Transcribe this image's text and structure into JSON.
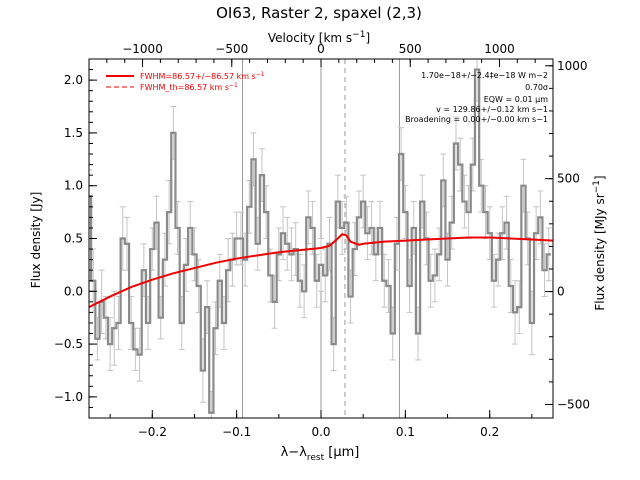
{
  "chart_data": {
    "type": "line",
    "title": "OI63, Raster 2, spaxel (2,3)",
    "xlabel": "λ−λ",
    "xlabel_sub": "rest",
    "xlabel_unit": " [μm]",
    "ylabel": "Flux density [Jy]",
    "top_axis_label": "Velocity [km s",
    "top_axis_label_sup": "−1",
    "top_axis_label_end": "]",
    "right_axis_label": "Flux density [MJy sr",
    "right_axis_label_sup": "−1",
    "right_axis_label_end": "]",
    "xlim": [
      -0.275,
      0.275
    ],
    "ylim": [
      -1.2,
      2.2
    ],
    "x_ticks": [
      -0.2,
      -0.1,
      0.0,
      0.1,
      0.2
    ],
    "x_tick_labels": [
      "−0.2",
      "−0.1",
      "0.0",
      "0.1",
      "0.2"
    ],
    "y_ticks": [
      -1.0,
      -0.5,
      0.0,
      0.5,
      1.0,
      1.5,
      2.0
    ],
    "y_tick_labels": [
      "−1.0",
      "−0.5",
      "0.0",
      "0.5",
      "1.0",
      "1.5",
      "2.0"
    ],
    "velocity_ticks": [
      -1000,
      -500,
      0,
      500,
      1000
    ],
    "velocity_tick_labels": [
      "−1000",
      "−500",
      "0",
      "500",
      "1000"
    ],
    "velocity_lim": [
      -1300,
      1300
    ],
    "right_ticks": [
      -500,
      0,
      500,
      1000
    ],
    "right_tick_labels": [
      "−500",
      "0",
      "500",
      "1000"
    ],
    "right_lim": [
      -560,
      1030
    ],
    "vertical_lines_solid": [
      -0.093,
      0.0,
      0.093
    ],
    "vertical_line_dashed": 0.0284,
    "legend": [
      {
        "label": "FWHM=86.57+/−86.57 km s",
        "sup": "−1",
        "style": "solid"
      },
      {
        "label": "FWHM_th=86.57 km s",
        "sup": "−1",
        "style": "dashed"
      }
    ],
    "annotations": [
      "1.70e−18+/−2.4‡e−18 W m−2",
      "0.70σ",
      "EQW = 0.01 μm",
      "v = 129.86+/−0.12 km s−1",
      "Broadening = 0.00+/−0.00 km s−1"
    ],
    "colors": {
      "data": "#8a8a8a",
      "error": "#c4c4c4",
      "model": "#ee0000",
      "vline": "#999999"
    },
    "series": [
      {
        "name": "Flux density",
        "style": "step",
        "x": [
          -0.275,
          -0.27,
          -0.265,
          -0.26,
          -0.255,
          -0.25,
          -0.245,
          -0.24,
          -0.235,
          -0.23,
          -0.225,
          -0.22,
          -0.215,
          -0.21,
          -0.205,
          -0.2,
          -0.195,
          -0.19,
          -0.185,
          -0.18,
          -0.175,
          -0.17,
          -0.165,
          -0.16,
          -0.155,
          -0.15,
          -0.145,
          -0.14,
          -0.135,
          -0.13,
          -0.125,
          -0.12,
          -0.115,
          -0.11,
          -0.105,
          -0.1,
          -0.095,
          -0.09,
          -0.085,
          -0.08,
          -0.075,
          -0.07,
          -0.065,
          -0.06,
          -0.055,
          -0.05,
          -0.045,
          -0.04,
          -0.035,
          -0.03,
          -0.025,
          -0.02,
          -0.015,
          -0.01,
          -0.005,
          0.0,
          0.005,
          0.01,
          0.015,
          0.02,
          0.025,
          0.03,
          0.035,
          0.04,
          0.045,
          0.05,
          0.055,
          0.06,
          0.065,
          0.07,
          0.075,
          0.08,
          0.085,
          0.09,
          0.095,
          0.1,
          0.105,
          0.11,
          0.115,
          0.12,
          0.125,
          0.13,
          0.135,
          0.14,
          0.145,
          0.15,
          0.155,
          0.16,
          0.165,
          0.17,
          0.175,
          0.18,
          0.185,
          0.19,
          0.195,
          0.2,
          0.205,
          0.21,
          0.215,
          0.22,
          0.225,
          0.23,
          0.235,
          0.24,
          0.245,
          0.25,
          0.255,
          0.26,
          0.265,
          0.27
        ],
        "y": [
          0.9,
          0.1,
          -0.45,
          -0.1,
          -0.25,
          -0.5,
          -0.35,
          -0.3,
          0.5,
          0.45,
          -0.3,
          -0.55,
          -0.6,
          0.2,
          -0.3,
          0.4,
          0.65,
          -0.25,
          0.3,
          0.75,
          1.5,
          0.6,
          -0.3,
          0.25,
          0.6,
          0.35,
          0.05,
          -0.75,
          -0.15,
          -1.15,
          -0.35,
          0.1,
          -0.3,
          0.2,
          0.3,
          0.5,
          0.5,
          0.3,
          0.8,
          1.25,
          0.45,
          1.1,
          0.75,
          0.15,
          -0.1,
          0.35,
          0.55,
          0.45,
          0.35,
          0.4,
          0.1,
          0.0,
          0.7,
          0.6,
          0.1,
          0.25,
          0.15,
          0.45,
          -0.5,
          0.85,
          0.6,
          0.65,
          -0.05,
          0.4,
          0.7,
          0.85,
          0.55,
          0.6,
          0.35,
          0.6,
          0.1,
          0.05,
          -0.4,
          0.45,
          1.3,
          0.75,
          0.05,
          0.6,
          -0.4,
          0.85,
          0.5,
          0.1,
          0.15,
          0.35,
          1.05,
          0.3,
          0.65,
          1.4,
          1.2,
          0.85,
          0.75,
          1.2,
          2.1,
          1.0,
          0.75,
          0.55,
          0.1,
          0.3,
          0.55,
          0.65,
          0.05,
          -0.2,
          -0.15,
          1.0,
          0.5,
          -0.3,
          0.55,
          0.7,
          0.2,
          0.35
        ],
        "errors": [
          0.25,
          0.3,
          0.2,
          0.3,
          0.2,
          0.25,
          0.35,
          0.25,
          0.3,
          0.25,
          0.25,
          0.2,
          0.25,
          0.25,
          0.25,
          0.2,
          0.25,
          0.2,
          0.25,
          0.3,
          0.25,
          0.25,
          0.25,
          0.25,
          0.25,
          0.25,
          0.25,
          0.3,
          0.25,
          0.2,
          0.25,
          0.25,
          0.25,
          0.3,
          0.25,
          0.25,
          0.25,
          0.25,
          0.25,
          0.25,
          0.25,
          0.25,
          0.25,
          0.25,
          0.25,
          0.25,
          0.25,
          0.25,
          0.25,
          0.25,
          0.25,
          0.25,
          0.25,
          0.25,
          0.25,
          0.25,
          0.25,
          0.25,
          0.25,
          0.25,
          0.25,
          0.25,
          0.25,
          0.25,
          0.25,
          0.25,
          0.25,
          0.25,
          0.25,
          0.25,
          0.25,
          0.25,
          0.25,
          0.25,
          0.25,
          0.25,
          0.25,
          0.25,
          0.25,
          0.25,
          0.25,
          0.25,
          0.25,
          0.25,
          0.25,
          0.25,
          0.25,
          0.25,
          0.25,
          0.25,
          0.25,
          0.25,
          0.3,
          0.25,
          0.25,
          0.25,
          0.25,
          0.25,
          0.25,
          0.25,
          0.25,
          0.3,
          0.25,
          0.25,
          0.25,
          0.3,
          0.25,
          0.25,
          0.25,
          0.25
        ]
      },
      {
        "name": "Fit",
        "style": "line",
        "x": [
          -0.275,
          -0.25,
          -0.225,
          -0.2,
          -0.175,
          -0.15,
          -0.125,
          -0.1,
          -0.075,
          -0.05,
          -0.025,
          0.0,
          0.01,
          0.02,
          0.025,
          0.03,
          0.035,
          0.045,
          0.05,
          0.075,
          0.1,
          0.125,
          0.15,
          0.175,
          0.2,
          0.225,
          0.25,
          0.275
        ],
        "y": [
          -0.15,
          -0.05,
          0.04,
          0.11,
          0.17,
          0.22,
          0.27,
          0.31,
          0.34,
          0.37,
          0.39,
          0.41,
          0.43,
          0.5,
          0.54,
          0.53,
          0.47,
          0.44,
          0.45,
          0.47,
          0.48,
          0.49,
          0.5,
          0.51,
          0.51,
          0.5,
          0.49,
          0.48
        ]
      }
    ]
  }
}
